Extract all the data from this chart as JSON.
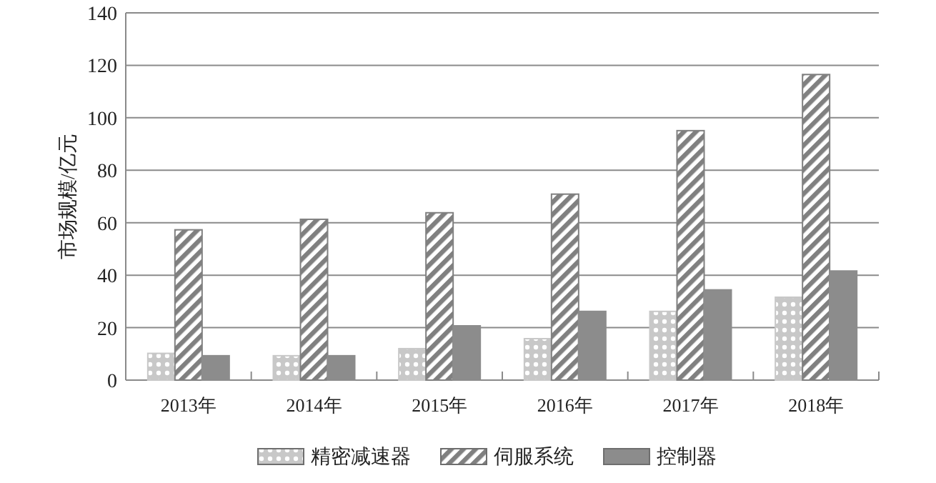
{
  "chart_data": {
    "type": "bar",
    "ylabel": "市场规模/亿元",
    "categories": [
      "2013年",
      "2014年",
      "2015年",
      "2016年",
      "2017年",
      "2018年"
    ],
    "series": [
      {
        "name": "精密减速器",
        "color": "#c8c8c8",
        "values": [
          10.2,
          9.3,
          12,
          15.8,
          26.2,
          31.6
        ]
      },
      {
        "name": "伺服系统",
        "color": "#808080",
        "values": [
          57.3,
          61.3,
          63.8,
          70.9,
          95.1,
          116.5
        ]
      },
      {
        "name": "控制器",
        "color": "#8c8c8c",
        "values": [
          9.3,
          9.3,
          20.7,
          26.2,
          34.4,
          41.6
        ]
      }
    ],
    "ylim": [
      0,
      140
    ],
    "yticks": [
      0,
      20,
      40,
      60,
      80,
      100,
      120,
      140
    ],
    "grid": "y",
    "legend": "bottom"
  }
}
